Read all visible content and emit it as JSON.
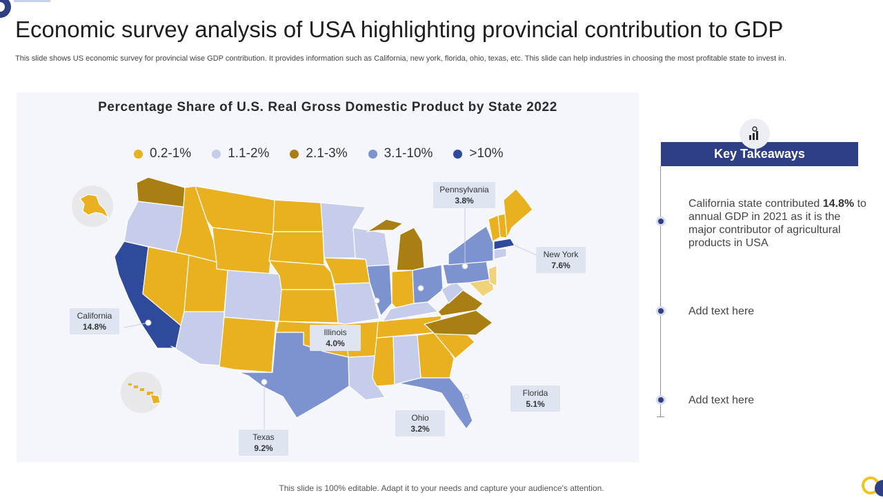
{
  "header": {
    "title": "Economic survey analysis of USA highlighting provincial contribution to GDP",
    "subtitle": "This slide shows US economic survey for provincial wise GDP contribution. It provides information such as California, new york, florida, ohio, texas, etc. This slide can help industries in choosing the most profitable state to invest in."
  },
  "map": {
    "title": "Percentage Share of U.S. Real Gross Domestic Product by State 2022",
    "legend": [
      {
        "label": "0.2-1%",
        "color": "#e9b11f"
      },
      {
        "label": "1.1-2%",
        "color": "#c5cdea"
      },
      {
        "label": "2.1-3%",
        "color": "#a97e13"
      },
      {
        "label": "3.1-10%",
        "color": "#7d93d0"
      },
      {
        "label": ">10%",
        "color": "#2f4a9c"
      }
    ],
    "callouts": {
      "california": {
        "name": "California",
        "value": "14.8%"
      },
      "texas": {
        "name": "Texas",
        "value": "9.2%"
      },
      "illinois": {
        "name": "Illinois",
        "value": "4.0%"
      },
      "ohio": {
        "name": "Ohio",
        "value": "3.2%"
      },
      "pennsylvania": {
        "name": "Pennsylvania",
        "value": "3.8%"
      },
      "new_york": {
        "name": "New York",
        "value": "7.6%"
      },
      "florida": {
        "name": "Florida",
        "value": "5.1%"
      }
    }
  },
  "takeaways": {
    "heading": "Key Takeaways",
    "item1_pre": "California state contributed ",
    "item1_bold": "14.8%",
    "item1_post": " to annual GDP in 2021 as it is the major contributor of agricultural products in USA",
    "item2": "Add text here",
    "item3": "Add text here"
  },
  "footer": {
    "text": "This slide is 100% editable. Adapt it to your needs and capture your audience's attention."
  }
}
